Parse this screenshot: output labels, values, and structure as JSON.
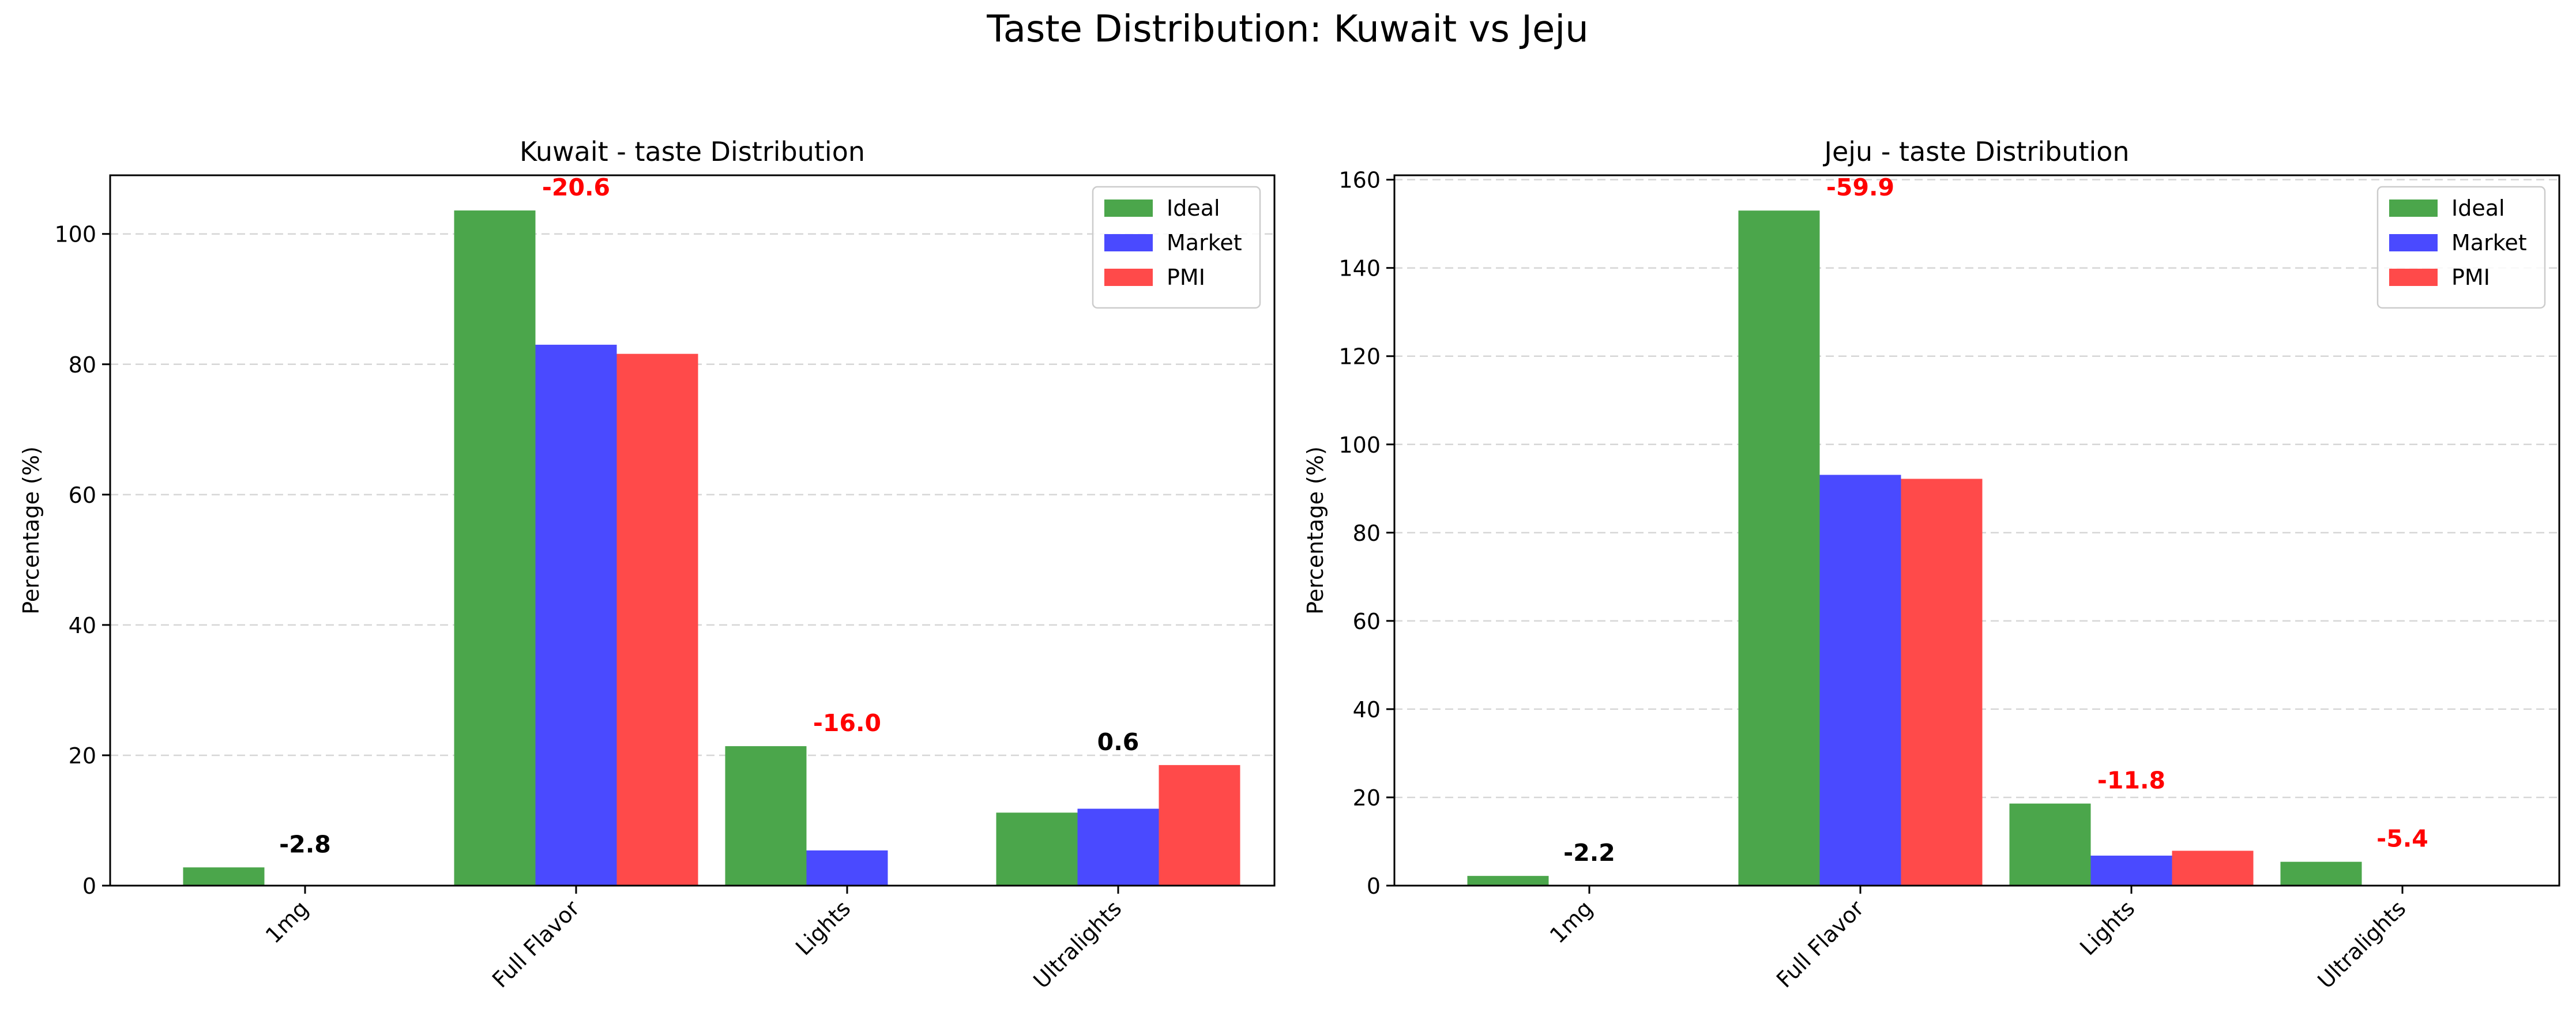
{
  "figure": {
    "title": "Taste Distribution: Kuwait vs Jeju"
  },
  "colors": {
    "Ideal": "#4ba64b",
    "Market": "#4a4aff",
    "PMI": "#ff4a4a",
    "gap_negative": "#ff0000",
    "gap_other": "#000000"
  },
  "chart_data": [
    {
      "type": "bar",
      "title": "Kuwait - taste Distribution",
      "xlabel": "",
      "ylabel": "Percentage (%)",
      "ylim": [
        0,
        109
      ],
      "yticks": [
        0,
        20,
        40,
        60,
        80,
        100
      ],
      "grid": "y-dashed",
      "legend_position": "top-right",
      "categories": [
        "1mg",
        "Full Flavor",
        "Lights",
        "Ultralights"
      ],
      "series": [
        {
          "name": "Ideal",
          "values": [
            2.8,
            103.6,
            21.4,
            11.2
          ]
        },
        {
          "name": "Market",
          "values": [
            0,
            83.0,
            5.4,
            11.8
          ]
        },
        {
          "name": "PMI",
          "values": [
            0,
            81.6,
            0,
            18.5
          ]
        }
      ],
      "gap_labels": [
        "-2.8",
        "-20.6",
        "-16.0",
        "0.6"
      ],
      "gap_label_colors": [
        "#000000",
        "#ff0000",
        "#ff0000",
        "#000000"
      ]
    },
    {
      "type": "bar",
      "title": "Jeju - taste Distribution",
      "xlabel": "",
      "ylabel": "Percentage (%)",
      "ylim": [
        0,
        161
      ],
      "yticks": [
        0,
        20,
        40,
        60,
        80,
        100,
        120,
        140,
        160
      ],
      "grid": "y-dashed",
      "legend_position": "top-right",
      "categories": [
        "1mg",
        "Full Flavor",
        "Lights",
        "Ultralights"
      ],
      "series": [
        {
          "name": "Ideal",
          "values": [
            2.2,
            153.0,
            18.6,
            5.4
          ]
        },
        {
          "name": "Market",
          "values": [
            0,
            93.1,
            6.8,
            0
          ]
        },
        {
          "name": "PMI",
          "values": [
            0,
            92.2,
            7.9,
            0
          ]
        }
      ],
      "gap_labels": [
        "-2.2",
        "-59.9",
        "-11.8",
        "-5.4"
      ],
      "gap_label_colors": [
        "#000000",
        "#ff0000",
        "#ff0000",
        "#ff0000"
      ]
    }
  ]
}
